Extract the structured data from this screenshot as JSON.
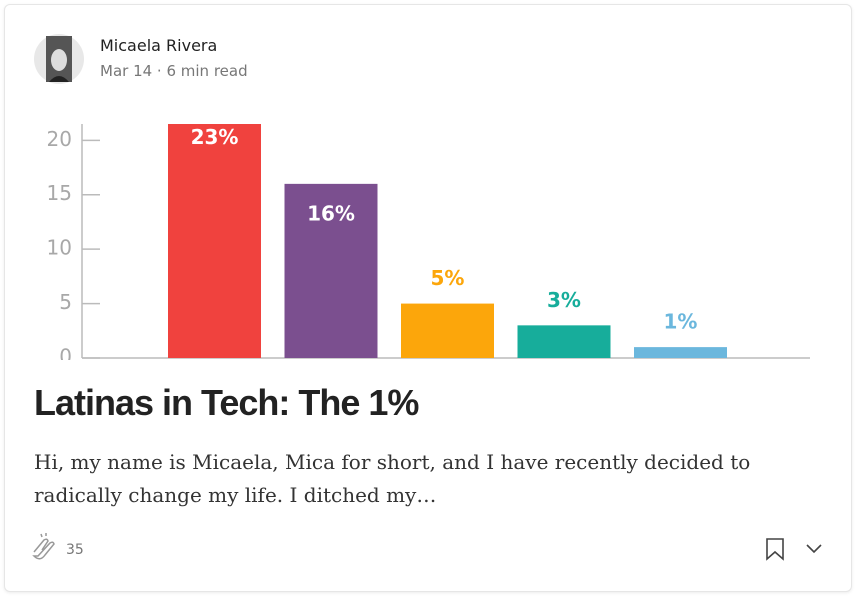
{
  "author": {
    "name": "Micaela Rivera",
    "meta": "Mar 14 · 6 min read"
  },
  "chart_data": {
    "type": "bar",
    "categories": [
      null,
      null,
      null,
      null,
      null
    ],
    "values": [
      23,
      16,
      5,
      3,
      1
    ],
    "value_labels": [
      "23%",
      "16%",
      "5%",
      "3%",
      "1%"
    ],
    "colors": [
      "#f0423e",
      "#7b4f8f",
      "#fca60b",
      "#17ad9b",
      "#6bb7dd"
    ],
    "ylim": [
      0,
      21.5
    ],
    "yticks": [
      0,
      5,
      10,
      15,
      20
    ]
  },
  "post": {
    "title": "Latinas in Tech: The 1%",
    "excerpt": "Hi, my name is Micaela, Mica for short, and I have recently decided to radically change my life. I ditched my…",
    "claps": 35
  }
}
